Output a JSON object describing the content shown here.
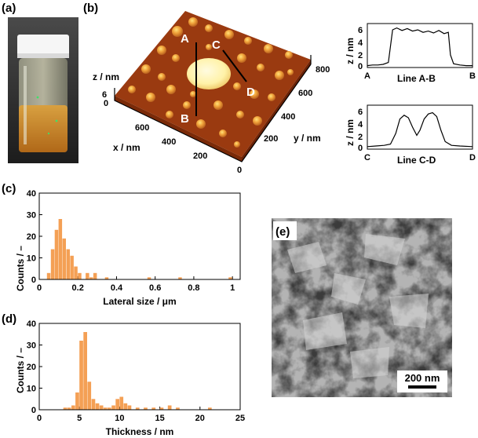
{
  "panels": {
    "a": {
      "label": "(a)"
    },
    "b": {
      "label": "(b)",
      "afm": {
        "z_label": "z / nm",
        "z_tick": "6",
        "z_zero": "0",
        "x_label": "x / nm",
        "x_ticks": [
          "600",
          "400",
          "200"
        ],
        "y_label": "y / nm",
        "y_ticks": [
          "0",
          "200",
          "400",
          "600",
          "800"
        ],
        "marks": {
          "A": "A",
          "B": "B",
          "C": "C",
          "D": "D"
        }
      },
      "profile_ab": {
        "ylabel": "z / nm",
        "yticks": [
          "0",
          "2",
          "4",
          "6"
        ],
        "left": "A",
        "right": "B",
        "caption": "Line A-B",
        "ylim": [
          0,
          7
        ],
        "points": [
          [
            0,
            0.3
          ],
          [
            0.05,
            0.4
          ],
          [
            0.1,
            0.4
          ],
          [
            0.15,
            0.5
          ],
          [
            0.2,
            0.8
          ],
          [
            0.24,
            6.0
          ],
          [
            0.28,
            6.3
          ],
          [
            0.33,
            5.9
          ],
          [
            0.38,
            6.2
          ],
          [
            0.43,
            5.8
          ],
          [
            0.48,
            6.0
          ],
          [
            0.53,
            5.6
          ],
          [
            0.58,
            5.8
          ],
          [
            0.63,
            5.5
          ],
          [
            0.68,
            5.9
          ],
          [
            0.73,
            5.4
          ],
          [
            0.77,
            5.6
          ],
          [
            0.79,
            2.0
          ],
          [
            0.82,
            0.6
          ],
          [
            0.88,
            0.4
          ],
          [
            0.94,
            0.3
          ],
          [
            1,
            0.3
          ]
        ]
      },
      "profile_cd": {
        "ylabel": "z / nm",
        "yticks": [
          "0",
          "2",
          "4",
          "6"
        ],
        "left": "C",
        "right": "D",
        "caption": "Line C-D",
        "ylim": [
          0,
          7
        ],
        "points": [
          [
            0,
            0.4
          ],
          [
            0.08,
            0.5
          ],
          [
            0.16,
            0.6
          ],
          [
            0.22,
            0.8
          ],
          [
            0.27,
            2.5
          ],
          [
            0.31,
            4.8
          ],
          [
            0.35,
            5.4
          ],
          [
            0.39,
            5.0
          ],
          [
            0.43,
            3.5
          ],
          [
            0.47,
            2.2
          ],
          [
            0.5,
            3.0
          ],
          [
            0.54,
            4.8
          ],
          [
            0.58,
            5.6
          ],
          [
            0.62,
            5.8
          ],
          [
            0.66,
            5.2
          ],
          [
            0.7,
            3.0
          ],
          [
            0.74,
            1.2
          ],
          [
            0.8,
            0.6
          ],
          [
            0.88,
            0.5
          ],
          [
            1,
            0.4
          ]
        ]
      }
    },
    "c": {
      "label": "(c)",
      "chart_data": {
        "type": "bar",
        "xlabel": "Lateral size / μm",
        "ylabel": "Counts / –",
        "xlim": [
          0,
          1.04
        ],
        "ylim": [
          0,
          40
        ],
        "bin_width": 0.02,
        "xticks": [
          "0",
          "0.2",
          "0.4",
          "0.6",
          "0.8",
          "1"
        ],
        "yticks": [
          "0",
          "10",
          "20",
          "30",
          "40"
        ],
        "bins": [
          0.04,
          0.06,
          0.08,
          0.1,
          0.12,
          0.14,
          0.16,
          0.18,
          0.2,
          0.24,
          0.26,
          0.28,
          0.34,
          0.56,
          0.72,
          0.98
        ],
        "values": [
          3,
          14,
          23,
          28,
          19,
          14,
          11,
          6,
          3,
          3,
          1,
          3,
          1,
          1,
          1,
          1
        ]
      }
    },
    "d": {
      "label": "(d)",
      "chart_data": {
        "type": "bar",
        "xlabel": "Thickness / nm",
        "ylabel": "Counts / –",
        "xlim": [
          0,
          25
        ],
        "ylim": [
          0,
          40
        ],
        "bin_width": 0.5,
        "xticks": [
          "0",
          "5",
          "10",
          "15",
          "20",
          "25"
        ],
        "yticks": [
          "0",
          "10",
          "20",
          "30",
          "40"
        ],
        "bins": [
          3,
          3.5,
          4,
          4.5,
          5,
          5.5,
          6,
          6.5,
          7,
          7.5,
          8,
          8.5,
          9,
          9.5,
          10,
          10.5,
          11,
          12,
          13,
          14,
          15,
          16,
          17,
          21
        ],
        "values": [
          1,
          1,
          2,
          8,
          32,
          36,
          13,
          5,
          3,
          2,
          1,
          1,
          2,
          5,
          6,
          3,
          2,
          1,
          1,
          1,
          1,
          2,
          1,
          1
        ]
      }
    },
    "e": {
      "label": "(e)",
      "scale_bar": "200 nm"
    }
  }
}
